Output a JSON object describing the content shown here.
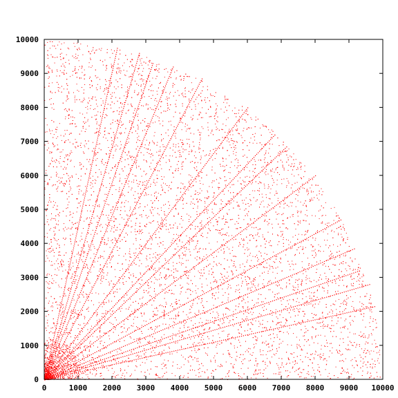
{
  "chart_data": {
    "type": "scatter",
    "title": "",
    "xlabel": "",
    "ylabel": "",
    "xlim": [
      0,
      10000
    ],
    "ylim": [
      0,
      10000
    ],
    "x_ticks": [
      0,
      1000,
      2000,
      3000,
      4000,
      5000,
      6000,
      7000,
      8000,
      9000,
      10000
    ],
    "y_ticks": [
      0,
      1000,
      2000,
      3000,
      4000,
      5000,
      6000,
      7000,
      8000,
      9000,
      10000
    ],
    "x_tick_labels": [
      "0",
      "1000",
      "2000",
      "3000",
      "4000",
      "5000",
      "6000",
      "7000",
      "8000",
      "9000",
      "10000"
    ],
    "y_tick_labels": [
      "0",
      "1000",
      "2000",
      "3000",
      "4000",
      "5000",
      "6000",
      "7000",
      "8000",
      "9000",
      "10000"
    ],
    "grid": false,
    "legend": "none",
    "marker": "dot",
    "color": "#ff0000",
    "radial_lines": [
      {
        "x": 3800,
        "y": 9200
      },
      {
        "x": 4650,
        "y": 8850
      },
      {
        "x": 6000,
        "y": 8000
      },
      {
        "x": 6800,
        "y": 7200
      },
      {
        "x": 7150,
        "y": 6850
      },
      {
        "x": 8000,
        "y": 6000
      },
      {
        "x": 8750,
        "y": 4700
      },
      {
        "x": 9150,
        "y": 3850
      },
      {
        "x": 9300,
        "y": 3200
      },
      {
        "x": 9600,
        "y": 2800
      },
      {
        "x": 9750,
        "y": 2150
      },
      {
        "x": 2800,
        "y": 9600
      },
      {
        "x": 2150,
        "y": 9750
      },
      {
        "x": 3200,
        "y": 9300
      }
    ],
    "scatter_region": "quarter disc x^2 + y^2 <= 10000^2, x >= 0, y >= 0"
  }
}
